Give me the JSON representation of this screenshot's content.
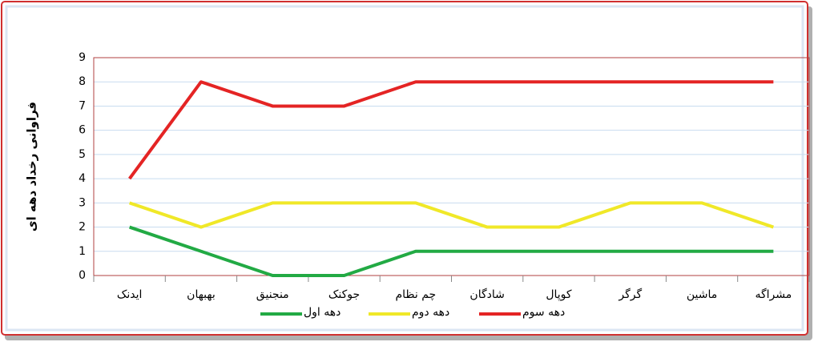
{
  "chart_data": {
    "type": "line",
    "y_label": "فراوانی رخداد دهه ای",
    "categories": [
      "ایدنک",
      "بهبهان",
      "منجنیق",
      "جوکنک",
      "چم نظام",
      "شادگان",
      "کوپال",
      "گرگر",
      "ماشین",
      "مشراگه"
    ],
    "series": [
      {
        "name": "دهه اول",
        "color": "#22aa44",
        "values": [
          2,
          1,
          0,
          0,
          1,
          1,
          1,
          1,
          1,
          1
        ]
      },
      {
        "name": "دهه دوم",
        "color": "#f0e828",
        "values": [
          3,
          2,
          3,
          3,
          3,
          2,
          2,
          3,
          3,
          2
        ]
      },
      {
        "name": "دهه سوم",
        "color": "#e42424",
        "values": [
          4,
          8,
          7,
          7,
          8,
          8,
          8,
          8,
          8,
          8
        ]
      }
    ],
    "ylim": [
      0,
      9
    ],
    "yticks": [
      0,
      1,
      2,
      3,
      4,
      5,
      6,
      7,
      8,
      9
    ],
    "grid": true
  }
}
